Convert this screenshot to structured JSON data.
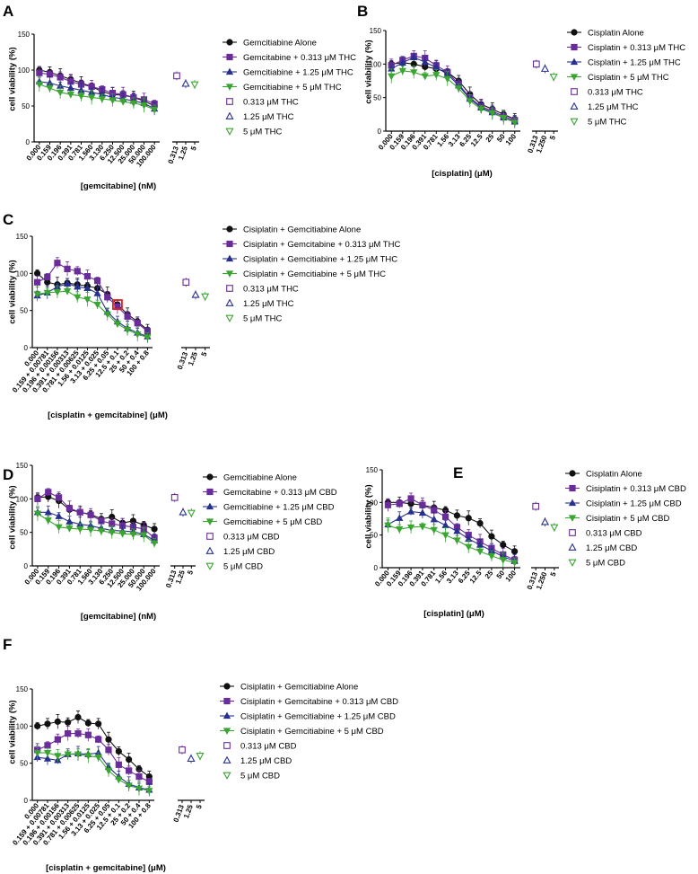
{
  "figure": {
    "colors": {
      "black": "#111111",
      "purple": "#6a2c9a",
      "navy": "#27308f",
      "green": "#3aa531",
      "highlight": "#e02020"
    }
  },
  "chart_data": [
    {
      "panel": "A",
      "type": "line",
      "ylabel": "cell viability (%)",
      "xlabel": "[gemcitabine] (nM)",
      "ylim": [
        0,
        150
      ],
      "yticks": [
        0,
        50,
        100,
        150
      ],
      "categories": [
        "0.000",
        "0.159",
        "0.196",
        "0.391",
        "0.781",
        "1.560",
        "3.130",
        "6.250",
        "12.500",
        "25.000",
        "50.000",
        "100.000"
      ],
      "series": [
        {
          "name": "Gemcitiabine Alone",
          "marker": "circle",
          "color": "black",
          "values": [
            100,
            97,
            92,
            87,
            82,
            77,
            70,
            66,
            65,
            62,
            57,
            50
          ]
        },
        {
          "name": "Gemcitabine + 0.313 μM THC",
          "marker": "square",
          "color": "purple",
          "values": [
            96,
            94,
            90,
            84,
            80,
            77,
            73,
            68,
            66,
            62,
            59,
            53
          ]
        },
        {
          "name": "Gemcitiabine + 1.25 μM THC",
          "marker": "triangle-up",
          "color": "navy",
          "values": [
            84,
            82,
            78,
            75,
            72,
            69,
            66,
            62,
            60,
            57,
            54,
            46
          ]
        },
        {
          "name": "Gemcitiabine + 5 μM THC",
          "marker": "triangle-down",
          "color": "green",
          "values": [
            80,
            75,
            69,
            66,
            64,
            62,
            60,
            58,
            56,
            54,
            51,
            45
          ]
        }
      ],
      "extra_categories": [
        "0.313",
        "1.25",
        "5"
      ],
      "extra_series": [
        {
          "name": "0.313 μM THC",
          "marker": "open-square",
          "color": "purple",
          "index": 0,
          "value": 92
        },
        {
          "name": "1.25 μM THC",
          "marker": "open-triangle-up",
          "color": "navy",
          "index": 1,
          "value": 81
        },
        {
          "name": "5 μM THC",
          "marker": "open-triangle-down",
          "color": "green",
          "index": 2,
          "value": 80
        }
      ]
    },
    {
      "panel": "B",
      "type": "line",
      "ylabel": "cell viability (%)",
      "xlabel": "[cisplatin] (μM)",
      "ylim": [
        0,
        150
      ],
      "yticks": [
        0,
        50,
        100,
        150
      ],
      "categories": [
        "0.000",
        "0.159",
        "0.196",
        "0.391",
        "0.781",
        "1.56",
        "3.13",
        "6.25",
        "12.5",
        "25",
        "50",
        "100"
      ],
      "series": [
        {
          "name": "Cisplatin Alone",
          "marker": "circle",
          "color": "black",
          "values": [
            100,
            102,
            100,
            96,
            93,
            88,
            75,
            55,
            40,
            33,
            25,
            18
          ]
        },
        {
          "name": "Cisplatin + 0.313 μM THC",
          "marker": "square",
          "color": "purple",
          "values": [
            98,
            106,
            112,
            109,
            98,
            88,
            70,
            50,
            37,
            30,
            22,
            16
          ]
        },
        {
          "name": "Cisplatin + 1.25 μM THC",
          "marker": "triangle-up",
          "color": "navy",
          "values": [
            93,
            102,
            110,
            103,
            95,
            85,
            68,
            48,
            35,
            28,
            20,
            14
          ]
        },
        {
          "name": "Cisplatin + 5 μM THC",
          "marker": "triangle-down",
          "color": "green",
          "values": [
            82,
            90,
            88,
            82,
            84,
            78,
            64,
            45,
            33,
            27,
            20,
            13
          ]
        }
      ],
      "extra_categories": [
        "0.313",
        "1.250",
        "5"
      ],
      "extra_series": [
        {
          "name": "0.313 μM THC",
          "marker": "open-square",
          "color": "purple",
          "index": 0,
          "value": 100
        },
        {
          "name": "1.25 μM THC",
          "marker": "open-triangle-up",
          "color": "navy",
          "index": 1,
          "value": 93
        },
        {
          "name": "5 μM THC",
          "marker": "open-triangle-down",
          "color": "green",
          "index": 2,
          "value": 81
        }
      ]
    },
    {
      "panel": "C",
      "type": "line",
      "ylabel": "cell viability (%)",
      "xlabel": "[cisplatin + gemcitabine] (μM)",
      "ylim": [
        0,
        150
      ],
      "yticks": [
        0,
        50,
        100,
        150
      ],
      "categories": [
        "0.000",
        "0.159 + 0.00781",
        "0.196 + 0.00156",
        "0.391 + 0.00313",
        "0.781 + 0.00625",
        "1.56 + 0.0125",
        "3.13 + 0.025",
        "6.25 + 0.05",
        "12.5 + 0.1",
        "25 + 0.2",
        "50 + 0.4",
        "100 + 0.8"
      ],
      "series": [
        {
          "name": "Cisiplatin + Gemcitiabine Alone",
          "marker": "circle",
          "color": "black",
          "values": [
            100,
            88,
            85,
            87,
            85,
            83,
            80,
            72,
            58,
            45,
            35,
            24
          ]
        },
        {
          "name": "Cisiplatin + Gemcitabine + 0.313 μM THC",
          "marker": "square",
          "color": "purple",
          "values": [
            88,
            95,
            114,
            106,
            103,
            96,
            90,
            68,
            55,
            42,
            33,
            22
          ]
        },
        {
          "name": "Cisiplatin + Gemcitiabine + 1.25 μM THC",
          "marker": "triangle-up",
          "color": "navy",
          "values": [
            70,
            74,
            82,
            86,
            82,
            80,
            73,
            48,
            35,
            26,
            20,
            15
          ]
        },
        {
          "name": "Cisiplatin + Gemcitiabine + 5 μM THC",
          "marker": "triangle-down",
          "color": "green",
          "values": [
            72,
            74,
            75,
            76,
            68,
            65,
            58,
            45,
            32,
            24,
            18,
            14
          ]
        }
      ],
      "highlight": {
        "series": 0,
        "index": 8
      },
      "extra_categories": [
        "0.313",
        "1.25",
        "5"
      ],
      "extra_series": [
        {
          "name": "0.313 μM THC",
          "marker": "open-square",
          "color": "purple",
          "index": 0,
          "value": 88
        },
        {
          "name": "1.25 μM THC",
          "marker": "open-triangle-up",
          "color": "navy",
          "index": 1,
          "value": 71
        },
        {
          "name": "5 μM THC",
          "marker": "open-triangle-down",
          "color": "green",
          "index": 2,
          "value": 69
        }
      ]
    },
    {
      "panel": "D",
      "type": "line",
      "ylabel": "cell viability (%)",
      "xlabel": "[gemcitabine] (nM)",
      "ylim": [
        0,
        150
      ],
      "yticks": [
        0,
        50,
        100,
        150
      ],
      "categories": [
        "0.000",
        "0.159",
        "0.196",
        "0.391",
        "0.781",
        "1.560",
        "3.130",
        "6.250",
        "12.500",
        "25.000",
        "50.000",
        "100.000"
      ],
      "series": [
        {
          "name": "Gemcitiabine Alone",
          "marker": "circle",
          "color": "black",
          "values": [
            102,
            103,
            97,
            84,
            80,
            77,
            70,
            73,
            64,
            67,
            61,
            55
          ]
        },
        {
          "name": "Gemcitabine + 0.313 μM CBD",
          "marker": "square",
          "color": "purple",
          "values": [
            100,
            110,
            102,
            86,
            80,
            76,
            67,
            63,
            60,
            58,
            55,
            42
          ]
        },
        {
          "name": "Gemcitiabine + 1.25 μM CBD",
          "marker": "triangle-up",
          "color": "navy",
          "values": [
            80,
            80,
            74,
            66,
            62,
            60,
            56,
            53,
            52,
            51,
            47,
            38
          ]
        },
        {
          "name": "Gemcitiabine + 5 μM CBD",
          "marker": "triangle-down",
          "color": "green",
          "values": [
            78,
            68,
            58,
            56,
            55,
            54,
            52,
            50,
            48,
            47,
            46,
            34
          ]
        }
      ],
      "extra_categories": [
        "0.313",
        "1.25",
        "5"
      ],
      "extra_series": [
        {
          "name": "0.313 μM CBD",
          "marker": "open-square",
          "color": "purple",
          "index": 0,
          "value": 102
        },
        {
          "name": "1.25 μM CBD",
          "marker": "open-triangle-up",
          "color": "navy",
          "index": 1,
          "value": 80
        },
        {
          "name": "5 μM CBD",
          "marker": "open-triangle-down",
          "color": "green",
          "index": 2,
          "value": 79
        }
      ]
    },
    {
      "panel": "E",
      "type": "line",
      "ylabel": "cell viability (%)",
      "xlabel": "[cisplatin] (μM)",
      "ylim": [
        0,
        150
      ],
      "yticks": [
        0,
        50,
        100,
        150
      ],
      "categories": [
        "0.000",
        "0.159",
        "0.196",
        "0.391",
        "0.781",
        "1.56",
        "3.13",
        "6.25",
        "12.5",
        "25",
        "50",
        "100"
      ],
      "series": [
        {
          "name": "Cisplatin Alone",
          "marker": "circle",
          "color": "black",
          "values": [
            100,
            100,
            98,
            96,
            92,
            88,
            80,
            76,
            68,
            48,
            35,
            25
          ]
        },
        {
          "name": "Cisiplatin + 0.313 μM CBD",
          "marker": "square",
          "color": "purple",
          "values": [
            96,
            98,
            106,
            96,
            88,
            78,
            62,
            50,
            40,
            30,
            20,
            12
          ]
        },
        {
          "name": "Cisiplatin + 1.25 μM CBD",
          "marker": "triangle-up",
          "color": "navy",
          "values": [
            66,
            76,
            86,
            84,
            74,
            65,
            56,
            44,
            35,
            26,
            17,
            10
          ]
        },
        {
          "name": "Cisiplatin + 5 μM CBD",
          "marker": "triangle-down",
          "color": "green",
          "values": [
            65,
            59,
            62,
            63,
            58,
            50,
            42,
            32,
            25,
            18,
            12,
            8
          ]
        }
      ],
      "extra_categories": [
        "0.313",
        "1.250",
        "5"
      ],
      "extra_series": [
        {
          "name": "0.313 μM CBD",
          "marker": "open-square",
          "color": "purple",
          "index": 0,
          "value": 94
        },
        {
          "name": "1.25 μM CBD",
          "marker": "open-triangle-up",
          "color": "navy",
          "index": 1,
          "value": 70
        },
        {
          "name": "5 μM CBD",
          "marker": "open-triangle-down",
          "color": "green",
          "index": 2,
          "value": 62
        }
      ]
    },
    {
      "panel": "F",
      "type": "line",
      "ylabel": "cell viability (%)",
      "xlabel": "[cisplatin + gemcitabine] (μM)",
      "ylim": [
        0,
        150
      ],
      "yticks": [
        0,
        50,
        100,
        150
      ],
      "categories": [
        "0.000",
        "0.159 + 0.00781",
        "0.196 + 0.00156",
        "0.391 + 0.00313",
        "0.781 + 0.00625",
        "1.56 + 0.0125",
        "3.13 + 0.025",
        "6.25 + 0.05",
        "12.5 + 0.1",
        "25 + 0.2",
        "50 + 0.4",
        "100 + 0.8"
      ],
      "series": [
        {
          "name": "Cisiplatin + Gemcitiabine Alone",
          "marker": "circle",
          "color": "black",
          "values": [
            100,
            103,
            106,
            105,
            112,
            104,
            103,
            82,
            66,
            55,
            42,
            32
          ]
        },
        {
          "name": "Cisiplatin + Gemcitabine + 0.313 μM CBD",
          "marker": "square",
          "color": "purple",
          "values": [
            68,
            74,
            82,
            90,
            90,
            88,
            82,
            68,
            48,
            40,
            32,
            25
          ]
        },
        {
          "name": "Cisiplatin + Gemcitiabine + 1.25 μM CBD",
          "marker": "triangle-up",
          "color": "navy",
          "values": [
            58,
            56,
            54,
            62,
            63,
            62,
            64,
            45,
            32,
            22,
            17,
            14
          ]
        },
        {
          "name": "Cisiplatin + Gemcitiabine + 5 μM CBD",
          "marker": "triangle-down",
          "color": "green",
          "values": [
            64,
            64,
            60,
            62,
            62,
            60,
            58,
            40,
            28,
            20,
            16,
            13
          ]
        }
      ],
      "extra_categories": [
        "0.313",
        "1.25",
        "5"
      ],
      "extra_series": [
        {
          "name": "0.313 μM CBD",
          "marker": "open-square",
          "color": "purple",
          "index": 0,
          "value": 68
        },
        {
          "name": "1.25 μM CBD",
          "marker": "open-triangle-up",
          "color": "navy",
          "index": 1,
          "value": 56
        },
        {
          "name": "5 μM CBD",
          "marker": "open-triangle-down",
          "color": "green",
          "index": 2,
          "value": 60
        }
      ]
    }
  ]
}
